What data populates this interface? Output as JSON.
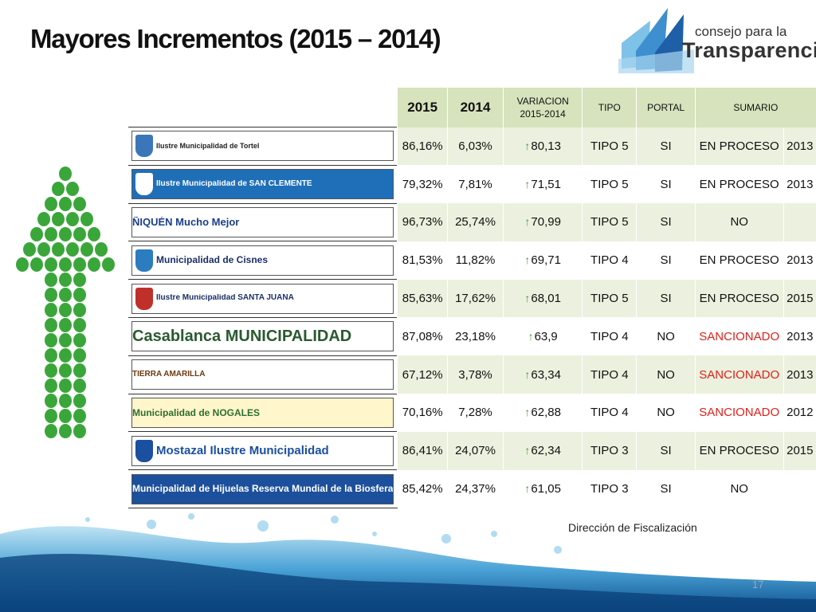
{
  "title": "Mayores Incrementos (2015 – 2014)",
  "brand": {
    "line1": "consejo para la",
    "line2": "Transparencia"
  },
  "headers": {
    "y2015": "2015",
    "y2014": "2014",
    "variacion": "VARIACION 2015-2014",
    "tipo": "TIPO",
    "portal": "PORTAL",
    "sumario": "SUMARIO"
  },
  "rows": [
    {
      "logo": "Ilustre Municipalidad de Tortel",
      "v2015": "86,16%",
      "v2014": "6,03%",
      "var": "80,13",
      "tipo": "TIPO 5",
      "portal": "SI",
      "sumario": "EN PROCESO",
      "year": "2013"
    },
    {
      "logo": "Ilustre Municipalidad de SAN CLEMENTE",
      "v2015": "79,32%",
      "v2014": "7,81%",
      "var": "71,51",
      "tipo": "TIPO 5",
      "portal": "SI",
      "sumario": "EN PROCESO",
      "year": "2013"
    },
    {
      "logo": "ÑIQUÉN Mucho Mejor",
      "v2015": "96,73%",
      "v2014": "25,74%",
      "var": "70,99",
      "tipo": "TIPO 5",
      "portal": "SI",
      "sumario": "NO",
      "year": ""
    },
    {
      "logo": "Municipalidad de Cisnes",
      "v2015": "81,53%",
      "v2014": "11,82%",
      "var": "69,71",
      "tipo": "TIPO 4",
      "portal": "SI",
      "sumario": "EN PROCESO",
      "year": "2013"
    },
    {
      "logo": "Ilustre Municipalidad SANTA JUANA",
      "v2015": "85,63%",
      "v2014": "17,62%",
      "var": "68,01",
      "tipo": "TIPO 5",
      "portal": "SI",
      "sumario": "EN PROCESO",
      "year": "2015"
    },
    {
      "logo": "Casablanca MUNICIPALIDAD",
      "v2015": "87,08%",
      "v2014": "23,18%",
      "var": "63,9",
      "tipo": "TIPO 4",
      "portal": "NO",
      "sumario": "SANCIONADO",
      "year": "2013"
    },
    {
      "logo": "TIERRA AMARILLA",
      "v2015": "67,12%",
      "v2014": "3,78%",
      "var": "63,34",
      "tipo": "TIPO 4",
      "portal": "NO",
      "sumario": "SANCIONADO",
      "year": "2013"
    },
    {
      "logo": "Municipalidad de NOGALES",
      "v2015": "70,16%",
      "v2014": "7,28%",
      "var": "62,88",
      "tipo": "TIPO 4",
      "portal": "NO",
      "sumario": "SANCIONADO",
      "year": "2012"
    },
    {
      "logo": "Mostazal Ilustre Municipalidad",
      "v2015": "86,41%",
      "v2014": "24,07%",
      "var": "62,34",
      "tipo": "TIPO 3",
      "portal": "SI",
      "sumario": "EN PROCESO",
      "year": "2015"
    },
    {
      "logo": "Municipalidad de Hijuelas Reserva Mundial de la Biosfera",
      "v2015": "85,42%",
      "v2014": "24,37%",
      "var": "61,05",
      "tipo": "TIPO 3",
      "portal": "SI",
      "sumario": "NO",
      "year": ""
    }
  ],
  "source": "Dirección de Fiscalización",
  "page_number": "17",
  "colors": {
    "header_bg": "#d6e3bc",
    "row_alt": "#ebf1de",
    "arrow": "#3aa63a",
    "sancionado": "#e0201a"
  }
}
